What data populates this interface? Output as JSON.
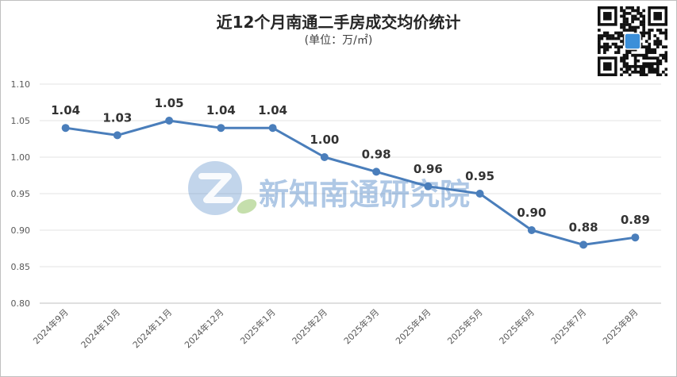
{
  "title": "近12个月南通二手房成交均价统计",
  "subtitle": "(单位：万/㎡)",
  "watermark": {
    "text": "新知南通研究院",
    "icon": "leaf-z-logo-icon"
  },
  "qr_code": {
    "icon": "qr-code-icon"
  },
  "colors": {
    "line": "#4a7ebb",
    "grid": "#e3e3e3",
    "watermark": "#4f86c6"
  },
  "chart_data": {
    "type": "line",
    "title": "近12个月南通二手房成交均价统计",
    "subtitle": "(单位：万/㎡)",
    "categories": [
      "2024年9月",
      "2024年10月",
      "2024年11月",
      "2024年12月",
      "2025年1月",
      "2025年2月",
      "2025年3月",
      "2025年4月",
      "2025年5月",
      "2025年6月",
      "2025年7月",
      "2025年8月"
    ],
    "series": [
      {
        "values": [
          1.04,
          1.03,
          1.05,
          1.04,
          1.04,
          1.0,
          0.98,
          0.96,
          0.95,
          0.9,
          0.88,
          0.89
        ]
      }
    ],
    "data_labels": [
      "1.04",
      "1.03",
      "1.05",
      "1.04",
      "1.04",
      "1.00",
      "0.98",
      "0.96",
      "0.95",
      "0.90",
      "0.88",
      "0.89"
    ],
    "y_ticks": [
      "0.80",
      "0.85",
      "0.90",
      "0.95",
      "1.00",
      "1.05",
      "1.10"
    ],
    "ylim": [
      0.8,
      1.1
    ],
    "grid": true,
    "legend": "none"
  }
}
